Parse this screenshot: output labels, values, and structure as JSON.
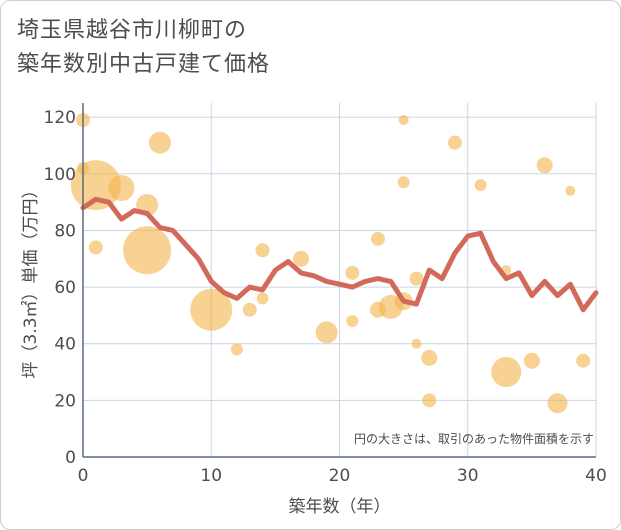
{
  "chart_data": {
    "type": "scatter",
    "title_line1": "埼玉県越谷市川柳町の",
    "title_line2": "築年数別中古戸建て価格",
    "xlabel": "築年数（年）",
    "ylabel": "坪（3.3㎡）単価（万円）",
    "xlim": [
      0,
      40
    ],
    "ylim": [
      0,
      125
    ],
    "xticks": [
      "0",
      "10",
      "20",
      "30",
      "40"
    ],
    "yticks": [
      "0",
      "20",
      "40",
      "60",
      "80",
      "100",
      "120"
    ],
    "note": "円の大きさは、取引のあった物件面積を示す",
    "series": [
      {
        "name": "scatter",
        "points": [
          {
            "x": 0,
            "y": 119,
            "s": 7
          },
          {
            "x": 0,
            "y": 102,
            "s": 6
          },
          {
            "x": 1,
            "y": 96,
            "s": 25
          },
          {
            "x": 1,
            "y": 74,
            "s": 7
          },
          {
            "x": 3,
            "y": 95,
            "s": 13
          },
          {
            "x": 5,
            "y": 89,
            "s": 11
          },
          {
            "x": 5,
            "y": 73,
            "s": 24
          },
          {
            "x": 6,
            "y": 111,
            "s": 11
          },
          {
            "x": 10,
            "y": 52,
            "s": 21
          },
          {
            "x": 12,
            "y": 38,
            "s": 6
          },
          {
            "x": 13,
            "y": 52,
            "s": 7
          },
          {
            "x": 14,
            "y": 73,
            "s": 7
          },
          {
            "x": 14,
            "y": 56,
            "s": 6
          },
          {
            "x": 17,
            "y": 70,
            "s": 8
          },
          {
            "x": 19,
            "y": 44,
            "s": 11
          },
          {
            "x": 21,
            "y": 65,
            "s": 7
          },
          {
            "x": 21,
            "y": 48,
            "s": 6
          },
          {
            "x": 23,
            "y": 77,
            "s": 7
          },
          {
            "x": 23,
            "y": 52,
            "s": 8
          },
          {
            "x": 24,
            "y": 53,
            "s": 12
          },
          {
            "x": 25,
            "y": 119,
            "s": 5
          },
          {
            "x": 25,
            "y": 97,
            "s": 6
          },
          {
            "x": 25,
            "y": 55,
            "s": 9
          },
          {
            "x": 26,
            "y": 63,
            "s": 7
          },
          {
            "x": 26,
            "y": 40,
            "s": 5
          },
          {
            "x": 27,
            "y": 35,
            "s": 8
          },
          {
            "x": 27,
            "y": 20,
            "s": 7
          },
          {
            "x": 29,
            "y": 111,
            "s": 7
          },
          {
            "x": 31,
            "y": 96,
            "s": 6
          },
          {
            "x": 33,
            "y": 66,
            "s": 5
          },
          {
            "x": 33,
            "y": 30,
            "s": 15
          },
          {
            "x": 35,
            "y": 34,
            "s": 8
          },
          {
            "x": 36,
            "y": 103,
            "s": 8
          },
          {
            "x": 37,
            "y": 19,
            "s": 10
          },
          {
            "x": 38,
            "y": 94,
            "s": 5
          },
          {
            "x": 39,
            "y": 34,
            "s": 7
          }
        ]
      },
      {
        "name": "trend",
        "x": [
          0,
          1,
          2,
          3,
          4,
          5,
          6,
          7,
          8,
          9,
          10,
          11,
          12,
          13,
          14,
          15,
          16,
          17,
          18,
          19,
          20,
          21,
          22,
          23,
          24,
          25,
          26,
          27,
          28,
          29,
          30,
          31,
          32,
          33,
          34,
          35,
          36,
          37,
          38,
          39,
          40
        ],
        "y": [
          88,
          91,
          90,
          84,
          87,
          86,
          81,
          80,
          75,
          70,
          62,
          58,
          56,
          60,
          59,
          66,
          69,
          65,
          64,
          62,
          61,
          60,
          62,
          63,
          62,
          55,
          54,
          66,
          63,
          72,
          78,
          79,
          69,
          63,
          65,
          57,
          62,
          57,
          61,
          52,
          58
        ]
      }
    ],
    "colors": {
      "bubble": "#f2b64f",
      "trend": "#d2695a",
      "grid": "#c8d6e2",
      "axis": "#5c6a80"
    }
  }
}
